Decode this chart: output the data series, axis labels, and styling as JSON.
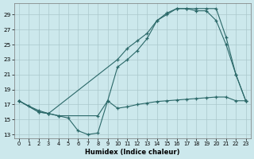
{
  "xlabel": "Humidex (Indice chaleur)",
  "ylabel": "",
  "bg_color": "#cce8ec",
  "grid_color": "#aac8cc",
  "line_color": "#2a6868",
  "xlim": [
    -0.5,
    23.5
  ],
  "ylim": [
    12.5,
    30.5
  ],
  "xticks": [
    0,
    1,
    2,
    3,
    4,
    5,
    6,
    7,
    8,
    9,
    10,
    11,
    12,
    13,
    14,
    15,
    16,
    17,
    18,
    19,
    20,
    21,
    22,
    23
  ],
  "yticks": [
    13,
    15,
    17,
    19,
    21,
    23,
    25,
    27,
    29
  ],
  "line1_x": [
    0,
    1,
    2,
    3,
    4,
    5,
    6,
    7,
    8,
    9,
    10,
    11,
    12,
    13,
    14,
    15,
    16,
    17,
    18,
    19,
    20,
    21,
    22,
    23
  ],
  "line1_y": [
    17.5,
    16.8,
    16.2,
    15.8,
    15.5,
    15.2,
    13.5,
    13.0,
    13.2,
    17.5,
    16.5,
    16.7,
    17.0,
    17.2,
    17.4,
    17.5,
    17.6,
    17.7,
    17.8,
    17.9,
    18.0,
    18.0,
    17.5,
    17.5
  ],
  "line2_x": [
    0,
    2,
    3,
    10,
    11,
    12,
    13,
    14,
    15,
    16,
    17,
    18,
    19,
    20,
    21,
    22,
    23
  ],
  "line2_y": [
    17.5,
    16.0,
    15.8,
    23.0,
    24.5,
    25.5,
    26.5,
    28.2,
    29.2,
    29.8,
    29.8,
    29.8,
    29.8,
    29.8,
    26.0,
    21.0,
    17.5
  ],
  "line3_x": [
    0,
    2,
    3,
    4,
    8,
    9,
    10,
    11,
    12,
    13,
    14,
    15,
    16,
    17,
    18,
    19,
    20,
    21,
    22,
    23
  ],
  "line3_y": [
    17.5,
    16.0,
    15.8,
    15.5,
    15.5,
    17.5,
    22.0,
    23.0,
    24.2,
    25.8,
    28.2,
    29.0,
    29.8,
    29.8,
    29.5,
    29.5,
    28.2,
    25.0,
    21.0,
    17.5
  ]
}
